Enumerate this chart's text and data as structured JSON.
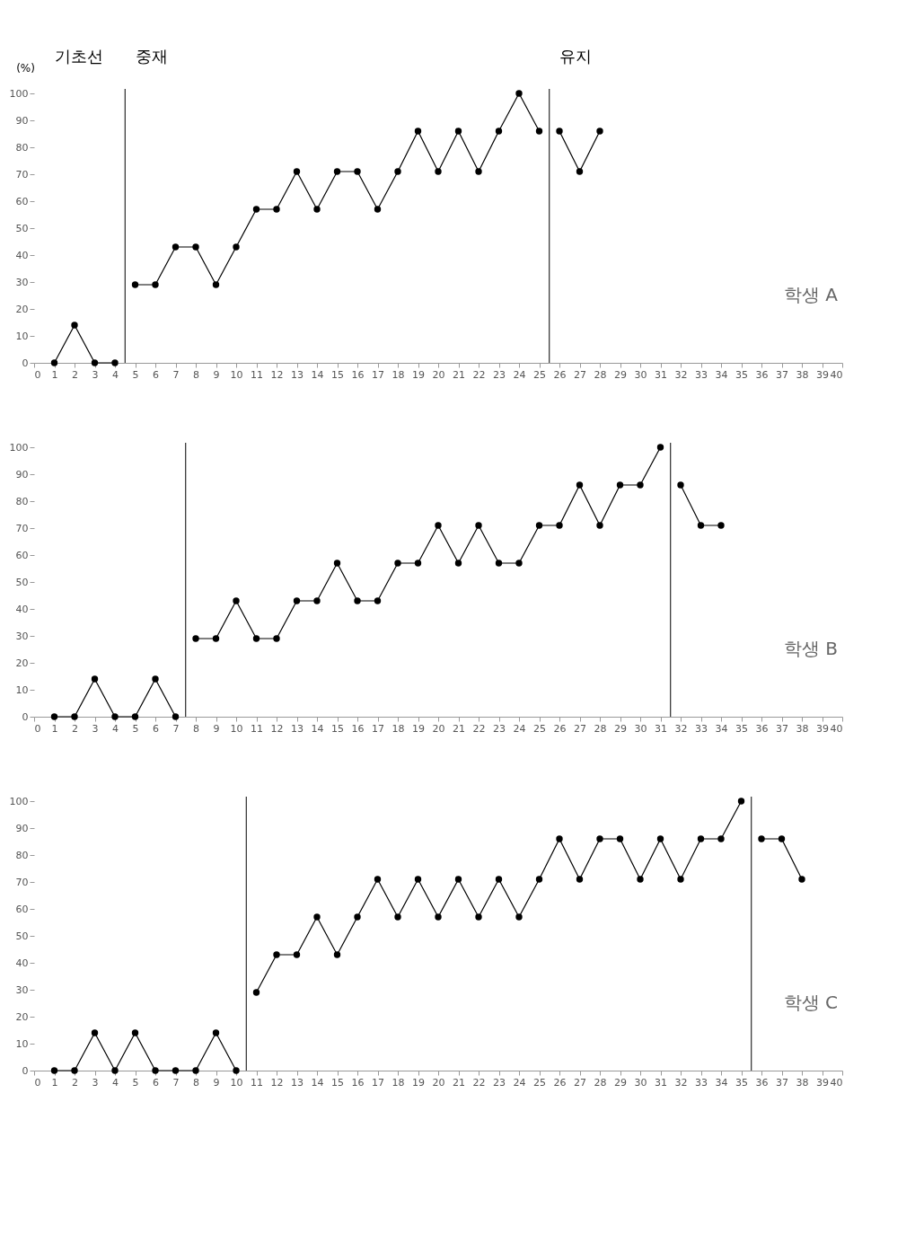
{
  "chart_data": [
    {
      "type": "line",
      "ylabel": "(%)",
      "annotations": [
        "기초선",
        "중재",
        "유지",
        "학생 A"
      ],
      "marker": "circle",
      "line_style": "solid",
      "grid": false,
      "legend": false,
      "xlim": [
        0,
        40
      ],
      "xticks": [
        0,
        1,
        2,
        3,
        4,
        5,
        6,
        7,
        8,
        9,
        10,
        11,
        12,
        13,
        14,
        15,
        16,
        17,
        18,
        19,
        20,
        21,
        22,
        23,
        24,
        25,
        26,
        27,
        28,
        29,
        30,
        31,
        32,
        33,
        34,
        35,
        36,
        37,
        38,
        39,
        40
      ],
      "ylim": [
        0,
        100
      ],
      "yticks": [
        0,
        10,
        20,
        30,
        40,
        50,
        60,
        70,
        80,
        90,
        100
      ],
      "ref_lines": [
        {
          "axis": "x",
          "value": 4.5,
          "color": "#000000"
        },
        {
          "axis": "x",
          "value": 25.5,
          "color": "#000000"
        }
      ],
      "series": [
        {
          "color": "#000000",
          "x": [
            1,
            2,
            3,
            4
          ],
          "values": [
            0,
            14,
            0,
            0
          ]
        },
        {
          "color": "#000000",
          "x": [
            5,
            6,
            7,
            8,
            9,
            10,
            11,
            12,
            13,
            14,
            15,
            16,
            17,
            18,
            19,
            20,
            21,
            22,
            23,
            24,
            25
          ],
          "values": [
            29,
            29,
            43,
            43,
            29,
            43,
            57,
            57,
            71,
            57,
            71,
            71,
            57,
            71,
            86,
            71,
            86,
            71,
            86,
            100,
            86
          ]
        },
        {
          "color": "#000000",
          "x": [
            26,
            27,
            28
          ],
          "values": [
            86,
            71,
            86
          ]
        }
      ]
    },
    {
      "type": "line",
      "annotations": [
        "학생 B"
      ],
      "marker": "circle",
      "line_style": "solid",
      "grid": false,
      "legend": false,
      "xlim": [
        0,
        40
      ],
      "xticks": [
        0,
        1,
        2,
        3,
        4,
        5,
        6,
        7,
        8,
        9,
        10,
        11,
        12,
        13,
        14,
        15,
        16,
        17,
        18,
        19,
        20,
        21,
        22,
        23,
        24,
        25,
        26,
        27,
        28,
        29,
        30,
        31,
        32,
        33,
        34,
        35,
        36,
        37,
        38,
        39,
        40
      ],
      "ylim": [
        0,
        100
      ],
      "yticks": [
        0,
        10,
        20,
        30,
        40,
        50,
        60,
        70,
        80,
        90,
        100
      ],
      "ref_lines": [
        {
          "axis": "x",
          "value": 7.5,
          "color": "#000000"
        },
        {
          "axis": "x",
          "value": 31.5,
          "color": "#000000"
        }
      ],
      "series": [
        {
          "color": "#000000",
          "x": [
            1,
            2,
            3,
            4,
            5,
            6,
            7
          ],
          "values": [
            0,
            0,
            14,
            0,
            0,
            14,
            0
          ]
        },
        {
          "color": "#000000",
          "x": [
            8,
            9,
            10,
            11,
            12,
            13,
            14,
            15,
            16,
            17,
            18,
            19,
            20,
            21,
            22,
            23,
            24,
            25,
            26,
            27,
            28,
            29,
            30,
            31
          ],
          "values": [
            29,
            29,
            43,
            29,
            29,
            43,
            43,
            57,
            43,
            43,
            57,
            57,
            71,
            57,
            71,
            57,
            57,
            71,
            71,
            86,
            71,
            86,
            86,
            100
          ]
        },
        {
          "color": "#000000",
          "x": [
            32,
            33,
            34
          ],
          "values": [
            86,
            71,
            71
          ]
        }
      ]
    },
    {
      "type": "line",
      "annotations": [
        "학생 C"
      ],
      "marker": "circle",
      "line_style": "solid",
      "grid": false,
      "legend": false,
      "xlim": [
        0,
        40
      ],
      "xticks": [
        0,
        1,
        2,
        3,
        4,
        5,
        6,
        7,
        8,
        9,
        10,
        11,
        12,
        13,
        14,
        15,
        16,
        17,
        18,
        19,
        20,
        21,
        22,
        23,
        24,
        25,
        26,
        27,
        28,
        29,
        30,
        31,
        32,
        33,
        34,
        35,
        36,
        37,
        38,
        39,
        40
      ],
      "ylim": [
        0,
        100
      ],
      "yticks": [
        0,
        10,
        20,
        30,
        40,
        50,
        60,
        70,
        80,
        90,
        100
      ],
      "ref_lines": [
        {
          "axis": "x",
          "value": 10.5,
          "color": "#000000"
        },
        {
          "axis": "x",
          "value": 35.5,
          "color": "#000000"
        }
      ],
      "series": [
        {
          "color": "#000000",
          "x": [
            1,
            2,
            3,
            4,
            5,
            6,
            7,
            8,
            9,
            10
          ],
          "values": [
            0,
            0,
            14,
            0,
            14,
            0,
            0,
            0,
            14,
            0
          ]
        },
        {
          "color": "#000000",
          "x": [
            11,
            12,
            13,
            14,
            15,
            16,
            17,
            18,
            19,
            20,
            21,
            22,
            23,
            24,
            25,
            26,
            27,
            28,
            29,
            30,
            31,
            32,
            33,
            34,
            35
          ],
          "values": [
            29,
            43,
            43,
            57,
            43,
            57,
            71,
            57,
            71,
            57,
            71,
            57,
            71,
            57,
            71,
            86,
            71,
            86,
            86,
            71,
            86,
            71,
            86,
            86,
            100
          ]
        },
        {
          "color": "#000000",
          "x": [
            36,
            37,
            38
          ],
          "values": [
            86,
            86,
            71
          ]
        }
      ]
    }
  ]
}
